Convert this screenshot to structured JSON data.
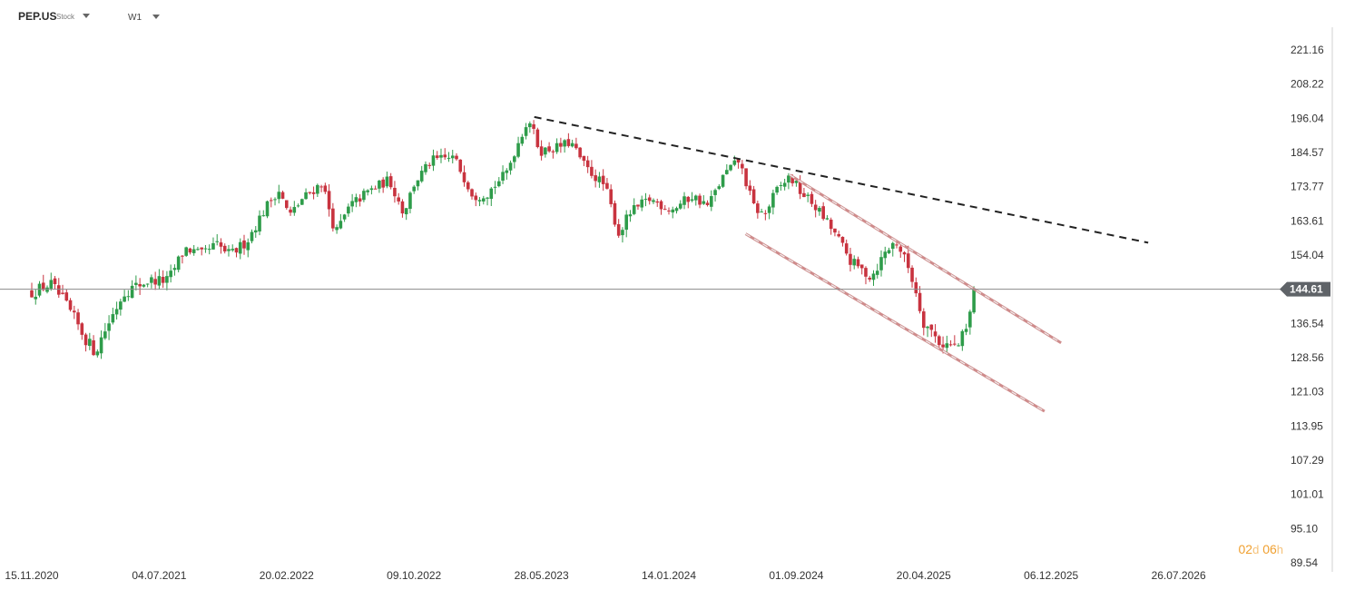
{
  "header": {
    "symbol": "PEP.US",
    "symbol_type": "Stock",
    "timeframe": "W1"
  },
  "countdown": {
    "days": "02",
    "days_unit": "d",
    "hours": "06",
    "hours_unit": "h",
    "color": "#f0a030"
  },
  "colors": {
    "up": "#2e9c4a",
    "down": "#c8333f",
    "trend": "#222222",
    "channel": "#cf8c8c",
    "channel_dash": "#eeeeee",
    "last_price_badge": "#5f6368"
  },
  "chart_data": {
    "type": "candlestick",
    "title": "",
    "xlabel": "",
    "ylabel": "",
    "ylim": [
      89.54,
      221.16
    ],
    "y_ticks": [
      "221.16",
      "208.22",
      "196.04",
      "184.57",
      "173.77",
      "163.61",
      "154.04",
      "144.61",
      "136.54",
      "128.56",
      "121.03",
      "113.95",
      "107.29",
      "101.01",
      "95.10",
      "89.54"
    ],
    "x_ticks": [
      "15.11.2020",
      "04.07.2021",
      "20.02.2022",
      "09.10.2022",
      "28.05.2023",
      "14.01.2024",
      "01.09.2024",
      "20.04.2025",
      "06.12.2025",
      "26.07.2026"
    ],
    "x_range": [
      "2020-11-15",
      "2026-11-15"
    ],
    "last_price": 144.61,
    "close_path": [
      [
        "2020-11-15",
        144
      ],
      [
        "2020-12-20",
        146
      ],
      [
        "2021-01-20",
        140
      ],
      [
        "2021-02-25",
        132
      ],
      [
        "2021-03-10",
        130
      ],
      [
        "2021-03-28",
        135
      ],
      [
        "2021-05-01",
        144
      ],
      [
        "2021-06-15",
        147
      ],
      [
        "2021-07-20",
        147
      ],
      [
        "2021-08-20",
        156
      ],
      [
        "2021-09-20",
        154
      ],
      [
        "2021-10-15",
        157
      ],
      [
        "2021-11-10",
        154
      ],
      [
        "2021-12-10",
        158
      ],
      [
        "2022-01-15",
        168
      ],
      [
        "2022-02-05",
        173
      ],
      [
        "2022-02-25",
        165
      ],
      [
        "2022-03-20",
        170
      ],
      [
        "2022-04-25",
        175
      ],
      [
        "2022-05-20",
        160
      ],
      [
        "2022-06-15",
        168
      ],
      [
        "2022-07-15",
        172
      ],
      [
        "2022-08-25",
        176
      ],
      [
        "2022-09-20",
        166
      ],
      [
        "2022-10-10",
        175
      ],
      [
        "2022-11-10",
        182
      ],
      [
        "2022-12-20",
        183
      ],
      [
        "2023-01-25",
        171
      ],
      [
        "2023-02-20",
        172
      ],
      [
        "2023-03-25",
        178
      ],
      [
        "2023-04-25",
        192
      ],
      [
        "2023-05-05",
        196
      ],
      [
        "2023-05-25",
        185
      ],
      [
        "2023-06-20",
        186
      ],
      [
        "2023-07-20",
        188
      ],
      [
        "2023-08-15",
        180
      ],
      [
        "2023-09-20",
        174
      ],
      [
        "2023-10-15",
        160
      ],
      [
        "2023-11-05",
        166
      ],
      [
        "2023-12-10",
        170
      ],
      [
        "2024-01-20",
        167
      ],
      [
        "2024-02-25",
        171
      ],
      [
        "2024-03-25",
        168
      ],
      [
        "2024-04-25",
        178
      ],
      [
        "2024-05-20",
        182
      ],
      [
        "2024-06-15",
        168
      ],
      [
        "2024-07-05",
        165
      ],
      [
        "2024-07-25",
        172
      ],
      [
        "2024-08-20",
        177
      ],
      [
        "2024-09-10",
        172
      ],
      [
        "2024-10-05",
        168
      ],
      [
        "2024-11-10",
        160
      ],
      [
        "2024-12-10",
        152
      ],
      [
        "2025-01-15",
        148
      ],
      [
        "2025-02-10",
        155
      ],
      [
        "2025-03-01",
        158
      ],
      [
        "2025-03-25",
        150
      ],
      [
        "2025-04-20",
        137
      ],
      [
        "2025-05-20",
        132
      ],
      [
        "2025-06-20",
        131
      ],
      [
        "2025-07-10",
        136
      ],
      [
        "2025-07-20",
        144.61
      ]
    ],
    "trendlines": [
      {
        "style": "dashed",
        "from": [
          "2023-05-15",
          196.5
        ],
        "to": [
          "2026-06-01",
          157.5
        ]
      },
      {
        "style": "channel",
        "from": [
          "2024-08-20",
          177.5
        ],
        "to": [
          "2025-12-25",
          132
        ]
      },
      {
        "style": "channel",
        "from": [
          "2024-06-01",
          160
        ],
        "to": [
          "2025-11-25",
          117
        ]
      }
    ],
    "grid": false,
    "legend": "none"
  }
}
